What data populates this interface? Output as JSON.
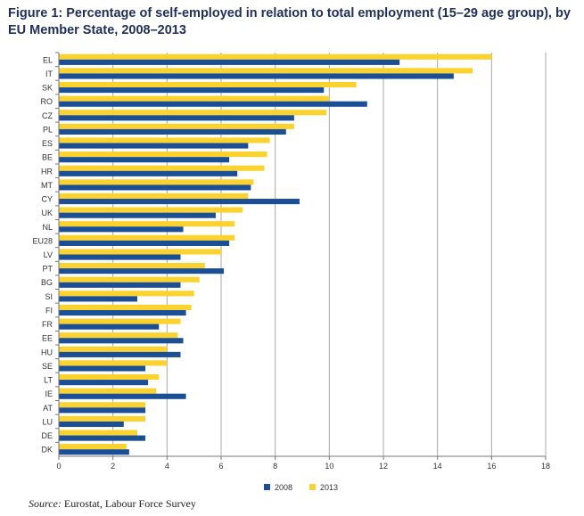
{
  "title": "Figure 1: Percentage of self-employed in relation to total employment (15–29 age group), by EU Member State, 2008–2013",
  "source_label": "Source:",
  "source_text": "Eurostat, Labour Force Survey",
  "colors": {
    "s2008": "#1a4f96",
    "s2013": "#fcd22f",
    "grid": "#a8a8a8",
    "axis": "#777777"
  },
  "chart_data": {
    "type": "bar",
    "orientation": "horizontal",
    "title": "Figure 1: Percentage of self-employed in relation to total employment (15–29 age group), by EU Member State, 2008–2013",
    "xlabel": "",
    "ylabel": "",
    "xlim": [
      0,
      18
    ],
    "xticks": [
      0,
      2,
      4,
      6,
      8,
      10,
      12,
      14,
      16,
      18
    ],
    "grid": "vertical",
    "legend": "bottom-center",
    "categories": [
      "EL",
      "IT",
      "SK",
      "RO",
      "CZ",
      "PL",
      "ES",
      "BE",
      "HR",
      "MT",
      "CY",
      "UK",
      "NL",
      "EU28",
      "LV",
      "PT",
      "BG",
      "SI",
      "FI",
      "FR",
      "EE",
      "HU",
      "SE",
      "LT",
      "IE",
      "AT",
      "LU",
      "DE",
      "DK"
    ],
    "series": [
      {
        "name": "2013",
        "color": "#fcd22f",
        "values": [
          16.0,
          15.3,
          11.0,
          10.0,
          9.9,
          8.7,
          7.8,
          7.7,
          7.6,
          7.2,
          7.0,
          6.8,
          6.5,
          6.5,
          6.0,
          5.4,
          5.2,
          5.0,
          4.9,
          4.5,
          4.4,
          4.0,
          4.0,
          3.7,
          3.6,
          3.2,
          3.2,
          2.9,
          2.5
        ]
      },
      {
        "name": "2008",
        "color": "#1a4f96",
        "values": [
          12.6,
          14.6,
          9.8,
          11.4,
          8.7,
          8.4,
          7.0,
          6.3,
          6.6,
          7.1,
          8.9,
          5.8,
          4.6,
          6.3,
          4.5,
          6.1,
          4.5,
          2.9,
          4.7,
          3.7,
          4.6,
          4.5,
          3.2,
          3.3,
          4.7,
          3.2,
          2.4,
          3.2,
          2.6
        ]
      }
    ],
    "legend_order": [
      "2008",
      "2013"
    ]
  }
}
